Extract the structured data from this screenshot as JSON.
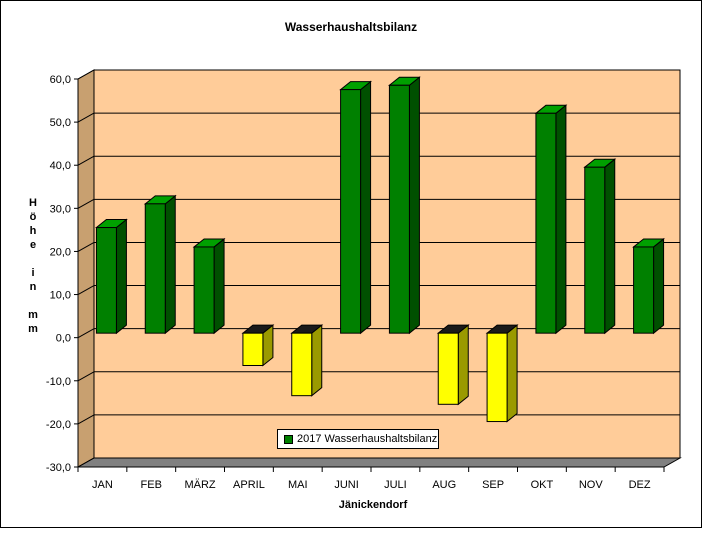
{
  "chart_data": {
    "type": "bar",
    "title": "Wasserhaushaltsbilanz",
    "xlabel": "Jänickendorf",
    "ylabel": "Höhe in mm",
    "ylabel_lines": [
      "H",
      "ö",
      "h",
      "e",
      "",
      "i",
      "n",
      "",
      "m",
      "m"
    ],
    "categories": [
      "JAN",
      "FEB",
      "MÄRZ",
      "APRIL",
      "MAI",
      "JUNI",
      "JULI",
      "AUG",
      "SEP",
      "OKT",
      "NOV",
      "DEZ"
    ],
    "series": [
      {
        "name": "2017 Wasserhaushaltsbilanz",
        "values": [
          24.5,
          30.0,
          20.0,
          -7.5,
          -14.5,
          56.5,
          57.5,
          -16.5,
          -20.5,
          51.0,
          38.5,
          20.0
        ]
      }
    ],
    "ylim": [
      -30,
      60
    ],
    "yticks": [
      "60,0",
      "50,0",
      "40,0",
      "30,0",
      "20,0",
      "10,0",
      "0,0",
      "-10,0",
      "-20,0",
      "-30,0"
    ],
    "ytick_values": [
      60,
      50,
      40,
      30,
      20,
      10,
      0,
      -10,
      -20,
      -30
    ],
    "grid": true,
    "legend_position": "bottom-center",
    "colors": {
      "positive": "#008000",
      "positive_side": "#005000",
      "positive_top": "#00a000",
      "negative": "#ffff00",
      "negative_side": "#9a9a00",
      "negative_top": "#1a1a1a",
      "plot_background": "#ffcc99",
      "wall_side": "#c8a070",
      "floor": "#808080"
    }
  }
}
